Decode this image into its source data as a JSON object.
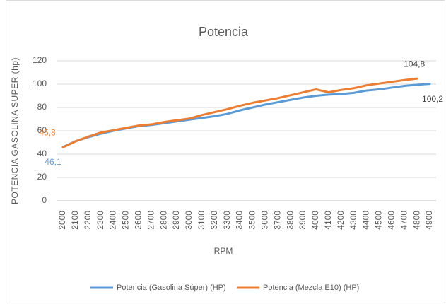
{
  "chart_data": {
    "type": "line",
    "title": "Potencia",
    "x_label": "RPM",
    "y_label": "POTENCIA GASOLINA SUPER (hp)",
    "categories": [
      "2000",
      "2100",
      "2200",
      "2300",
      "2400",
      "2500",
      "2600",
      "2700",
      "2800",
      "2900",
      "3000",
      "3100",
      "3200",
      "3300",
      "3400",
      "3500",
      "3600",
      "3700",
      "3800",
      "3900",
      "4000",
      "4100",
      "4200",
      "4300",
      "4400",
      "4500",
      "4600",
      "4700",
      "4800",
      "4900"
    ],
    "series": [
      {
        "name": "Potencia (Gasolina Súper) (HP)",
        "color": "#5b9bd5",
        "values": [
          46.1,
          51,
          54.5,
          57.5,
          60,
          62,
          64,
          65,
          66.5,
          68,
          69.5,
          71,
          72.5,
          74.5,
          77.5,
          80,
          82.5,
          84.5,
          86.5,
          88.5,
          90,
          91,
          91.5,
          92.5,
          94.5,
          95.5,
          97,
          98.5,
          99.5,
          100.2
        ],
        "value_labels": [
          "46,1",
          null,
          null,
          null,
          null,
          null,
          null,
          null,
          null,
          null,
          null,
          null,
          null,
          null,
          null,
          null,
          null,
          null,
          null,
          null,
          null,
          null,
          null,
          null,
          null,
          null,
          null,
          null,
          null,
          "100,2"
        ]
      },
      {
        "name": "Potencia (Mezcla E10)  (HP)",
        "color": "#ed7d31",
        "values": [
          45.8,
          51,
          55,
          58.5,
          60.5,
          62.5,
          64.5,
          65.5,
          67.5,
          69,
          70.5,
          73.5,
          76,
          78.5,
          81.5,
          84,
          86,
          88,
          90.5,
          93,
          95.5,
          93,
          95,
          96.5,
          99,
          100.5,
          102,
          103.5,
          104.8,
          null
        ],
        "value_labels": [
          "45,8",
          null,
          null,
          null,
          null,
          null,
          null,
          null,
          null,
          null,
          null,
          null,
          null,
          null,
          null,
          null,
          null,
          null,
          null,
          null,
          null,
          null,
          null,
          null,
          null,
          null,
          null,
          null,
          "104,8",
          null
        ]
      }
    ],
    "ylim": [
      0,
      120
    ],
    "yticks": [
      0,
      20,
      40,
      60,
      80,
      100,
      120
    ],
    "grid": true,
    "legend": "bottom"
  }
}
